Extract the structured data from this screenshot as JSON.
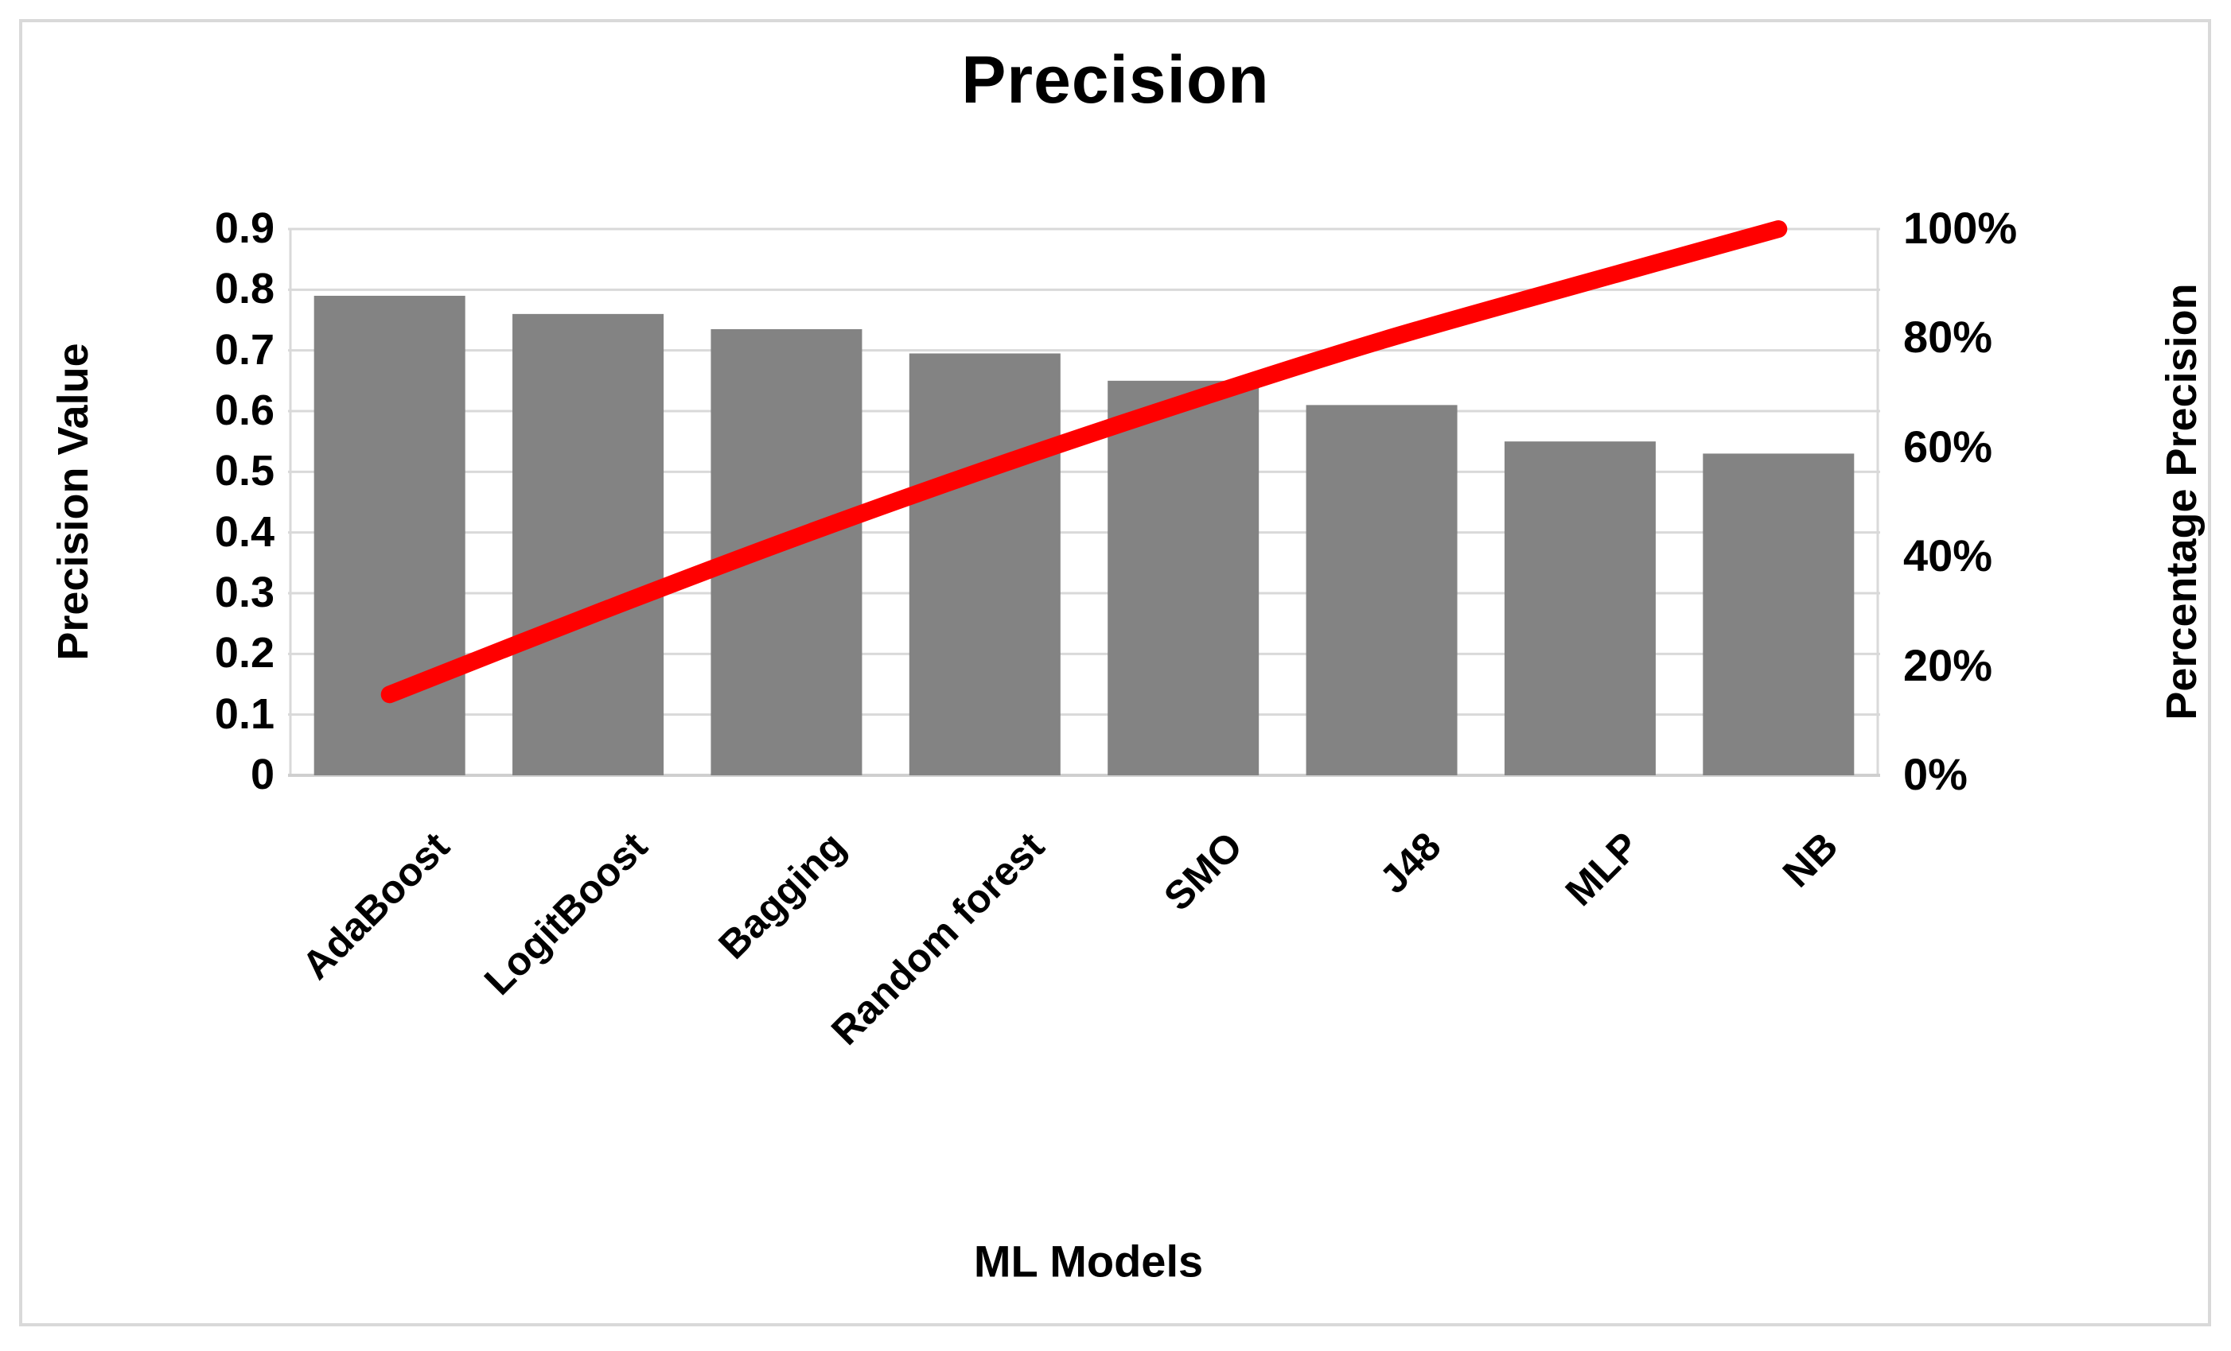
{
  "chart_data": {
    "type": "bar",
    "subtype": "pareto-combo-bar-line",
    "title": "Precision",
    "xlabel": "ML Models",
    "ylabel_left": "Precision Value",
    "ylabel_right": "Percentage Precision",
    "categories": [
      "AdaBoost",
      "LogitBoost",
      "Bagging",
      "Random forest",
      "SMO",
      "J48",
      "MLP",
      "NB"
    ],
    "series": [
      {
        "name": "Precision Value",
        "type": "bar",
        "axis": "left",
        "values": [
          0.79,
          0.76,
          0.735,
          0.695,
          0.65,
          0.61,
          0.55,
          0.53
        ],
        "color": "#838383"
      },
      {
        "name": "Percentage Precision",
        "type": "line",
        "axis": "right",
        "values_percent": [
          14.8,
          29.1,
          42.9,
          55.9,
          68.1,
          79.6,
          89.9,
          100
        ],
        "color": "#ff0000"
      }
    ],
    "ylim_left": [
      0,
      0.9
    ],
    "y_left_ticks": [
      "0.9",
      "0.8",
      "0.7",
      "0.6",
      "0.5",
      "0.4",
      "0.3",
      "0.2",
      "0.1",
      "0"
    ],
    "ylim_right_percent": [
      0,
      100
    ],
    "y_right_ticks": [
      "100%",
      "80%",
      "60%",
      "40%",
      "20%",
      "0%"
    ],
    "grid": true,
    "legend": "none",
    "gridline_color": "#d9d9d9",
    "bar_color": "#838383",
    "line_color": "#ff0000",
    "text_color": "#000000",
    "background_color": "#ffffff",
    "border_color": "#d9d9d9"
  }
}
